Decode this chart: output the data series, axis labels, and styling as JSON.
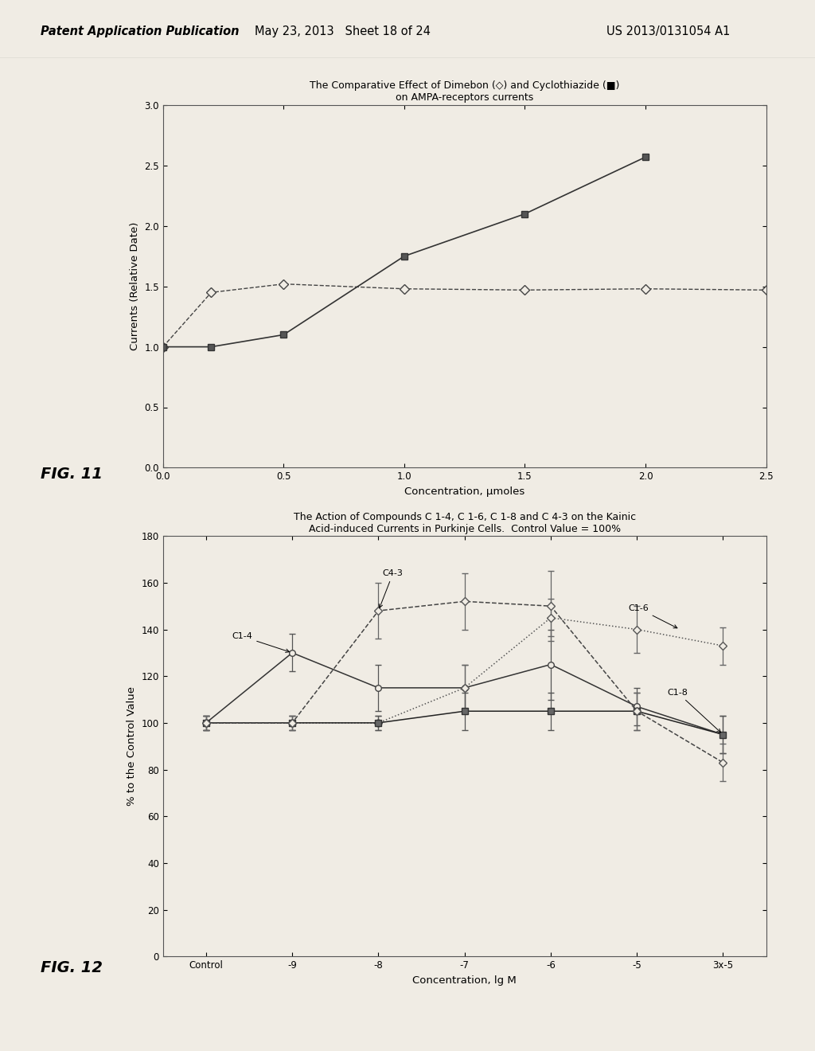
{
  "fig11": {
    "title_line1": "The Comparative Effect of Dimebon (◇) and Cyclothiazide (■)",
    "title_line2": "on AMPA-receptors currents",
    "xlabel": "Concentration, μmoles",
    "ylabel": "Currents (Relative Date)",
    "xlim": [
      0,
      2.5
    ],
    "ylim": [
      0.0,
      3.0
    ],
    "xticks": [
      0,
      0.5,
      1.0,
      1.5,
      2.0,
      2.5
    ],
    "yticks": [
      0.0,
      0.5,
      1.0,
      1.5,
      2.0,
      2.5,
      3.0
    ],
    "dimebon_x": [
      0,
      0.2,
      0.5,
      1.0,
      1.5,
      2.0,
      2.5
    ],
    "dimebon_y": [
      1.0,
      1.45,
      1.52,
      1.48,
      1.47,
      1.48,
      1.47
    ],
    "cyclo_x": [
      0,
      0.2,
      0.5,
      1.0,
      1.5,
      2.0
    ],
    "cyclo_y": [
      1.0,
      1.0,
      1.1,
      1.75,
      2.1,
      2.57
    ],
    "fig_label": "FIG. 11"
  },
  "fig12": {
    "title_line1": "The Action of Compounds C 1-4, C 1-6, C 1-8 and C 4-3 on the Kainic",
    "title_line2": "Acid-induced Currents in Purkinje Cells.  Control Value = 100%",
    "xlabel": "Concentration, lg M",
    "ylabel": "% to the Control Value",
    "xlim_labels": [
      "Control",
      "-9",
      "-8",
      "-7",
      "-6",
      "-5",
      "3x-5"
    ],
    "ylim": [
      0,
      180
    ],
    "yticks": [
      0,
      20,
      40,
      60,
      80,
      100,
      120,
      140,
      160,
      180
    ],
    "c14_y": [
      100,
      130,
      115,
      115,
      125,
      107,
      95
    ],
    "c14_yerr": [
      3,
      8,
      10,
      10,
      15,
      8,
      8
    ],
    "c16_y": [
      100,
      100,
      100,
      115,
      145,
      140,
      133
    ],
    "c16_yerr": [
      3,
      3,
      3,
      10,
      8,
      10,
      8
    ],
    "c18_y": [
      100,
      100,
      100,
      105,
      105,
      105,
      95
    ],
    "c18_yerr": [
      3,
      3,
      3,
      8,
      8,
      8,
      8
    ],
    "c43_y": [
      100,
      100,
      148,
      152,
      150,
      105,
      83
    ],
    "c43_yerr": [
      3,
      3,
      12,
      12,
      15,
      8,
      8
    ],
    "fig_label": "FIG. 12"
  },
  "bg_color": "#f0ece4",
  "page_bg": "#f0ece4",
  "header_text": "Patent Application Publication",
  "header_date": "May 23, 2013   Sheet 18 of 24",
  "header_patent": "US 2013/0131054 A1"
}
